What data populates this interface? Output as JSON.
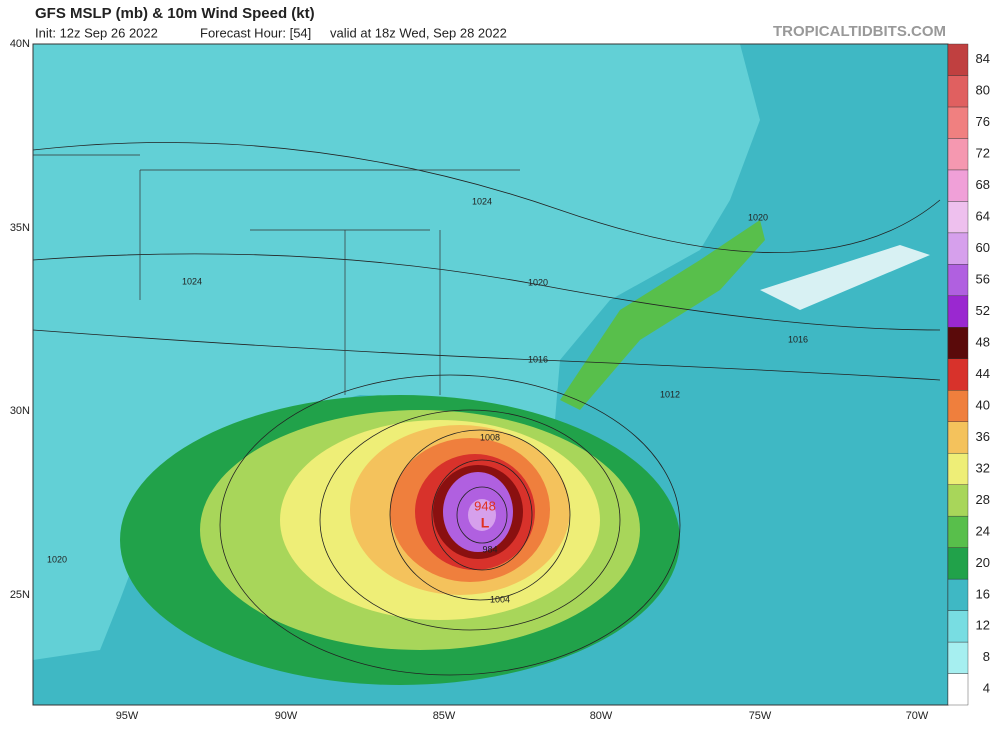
{
  "header": {
    "title": "GFS MSLP (mb) & 10m Wind Speed (kt)",
    "init": "Init: 12z Sep 26 2022",
    "forecast": "Forecast Hour: [54]",
    "valid": "valid at 18z Wed, Sep 28 2022",
    "site": "TROPICALTIDBITS.COM"
  },
  "map": {
    "lat_labels": [
      "40N",
      "35N",
      "30N",
      "25N"
    ],
    "lon_labels": [
      "95W",
      "90W",
      "85W",
      "80W",
      "75W",
      "70W"
    ],
    "pressure_labels": [
      "1024",
      "1024",
      "1020",
      "1020",
      "1016",
      "1016",
      "1012",
      "1008",
      "1004",
      "1020",
      "948",
      "984"
    ],
    "low_marker": "L"
  },
  "colorbar": {
    "ticks": [
      "4",
      "8",
      "12",
      "16",
      "20",
      "24",
      "28",
      "32",
      "36",
      "40",
      "44",
      "48",
      "52",
      "56",
      "60",
      "64",
      "68",
      "72",
      "76",
      "80",
      "84"
    ],
    "colors": [
      "#ffffff",
      "#a6eff0",
      "#78dde2",
      "#3fb8c4",
      "#21a24a",
      "#58bf4b",
      "#a8d65a",
      "#eeee77",
      "#f4c25c",
      "#ef7f3d",
      "#d8322b",
      "#5a0a0a",
      "#9a28d0",
      "#b060e0",
      "#d6a0ec",
      "#eec0ee",
      "#f0a0d8",
      "#f598b0",
      "#f08080",
      "#e06060",
      "#c04040"
    ]
  }
}
